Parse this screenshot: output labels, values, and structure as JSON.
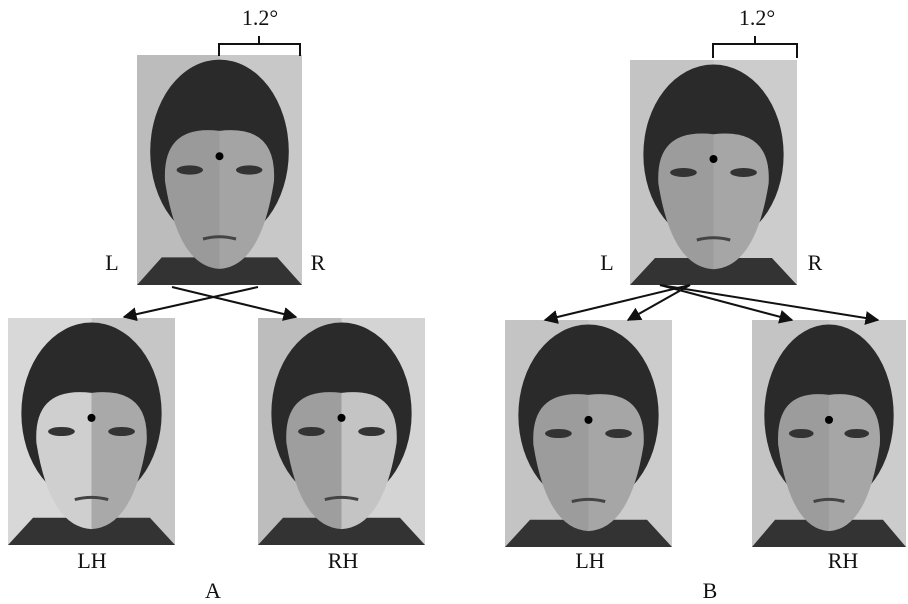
{
  "panels": [
    {
      "label": "A",
      "angle": "1.2°",
      "left": "L",
      "right": "R",
      "outputs": [
        "LH",
        "RH"
      ]
    },
    {
      "label": "B",
      "angle": "1.2°",
      "left": "L",
      "right": "R",
      "outputs": [
        "LH",
        "RH"
      ]
    }
  ]
}
